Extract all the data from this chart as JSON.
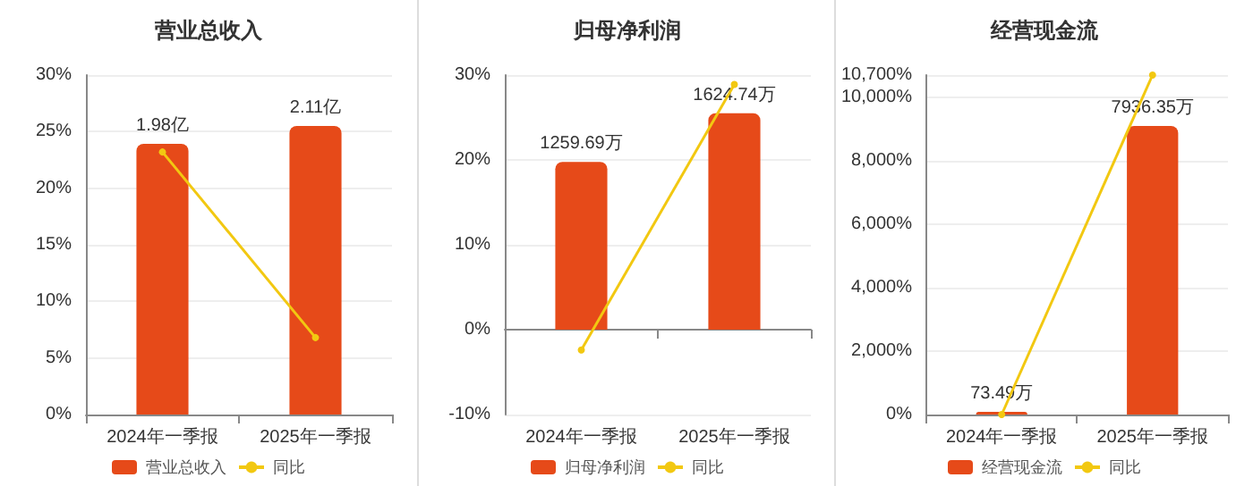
{
  "chart_data": [
    {
      "type": "bar",
      "title": "营业总收入",
      "categories": [
        "2024年一季报",
        "2025年一季报"
      ],
      "ylim": [
        0,
        30
      ],
      "yticks": [
        {
          "value": 0,
          "label": "0%"
        },
        {
          "value": 5,
          "label": "5%"
        },
        {
          "value": 10,
          "label": "10%"
        },
        {
          "value": 15,
          "label": "15%"
        },
        {
          "value": 20,
          "label": "20%"
        },
        {
          "value": 25,
          "label": "25%"
        },
        {
          "value": 30,
          "label": "30%"
        }
      ],
      "grid": "y",
      "legend": "bottom",
      "marker": "circle",
      "series": [
        {
          "name": "营业总收入",
          "axis": "y2",
          "color": "#e64a19",
          "values": [
            1.98,
            2.11
          ],
          "value_labels": [
            "1.98亿",
            "2.11亿"
          ]
        },
        {
          "name": "同比",
          "type": "line",
          "color": "#f2c811",
          "values": [
            23.2,
            6.8
          ]
        }
      ]
    },
    {
      "type": "bar",
      "title": "归母净利润",
      "categories": [
        "2024年一季报",
        "2025年一季报"
      ],
      "ylim": [
        -10,
        30
      ],
      "yticks": [
        {
          "value": -10,
          "label": "-10%"
        },
        {
          "value": 0,
          "label": "0%"
        },
        {
          "value": 10,
          "label": "10%"
        },
        {
          "value": 20,
          "label": "20%"
        },
        {
          "value": 30,
          "label": "30%"
        }
      ],
      "grid": "y",
      "legend": "bottom",
      "marker": "circle",
      "series": [
        {
          "name": "归母净利润",
          "axis": "y2",
          "color": "#e64a19",
          "values": [
            1259.69,
            1624.74
          ],
          "value_labels": [
            "1259.69万",
            "1624.74万"
          ]
        },
        {
          "name": "同比",
          "type": "line",
          "color": "#f2c811",
          "values": [
            -2.4,
            28.9
          ]
        }
      ]
    },
    {
      "type": "bar",
      "title": "经营现金流",
      "categories": [
        "2024年一季报",
        "2025年一季报"
      ],
      "ylim": [
        0,
        10700
      ],
      "yticks": [
        {
          "value": 0,
          "label": "0%"
        },
        {
          "value": 2000,
          "label": "2,000%"
        },
        {
          "value": 4000,
          "label": "4,000%"
        },
        {
          "value": 6000,
          "label": "6,000%"
        },
        {
          "value": 8000,
          "label": "8,000%"
        },
        {
          "value": 10000,
          "label": "10,000%"
        },
        {
          "value": 10700,
          "label": "10,700%"
        }
      ],
      "grid": "y",
      "legend": "bottom",
      "marker": "circle",
      "series": [
        {
          "name": "经营现金流",
          "axis": "y2",
          "color": "#e64a19",
          "values": [
            73.49,
            7936.35
          ],
          "value_labels": [
            "73.49万",
            "7936.35万"
          ]
        },
        {
          "name": "同比",
          "type": "line",
          "color": "#f2c811",
          "values": [
            0,
            10700
          ]
        }
      ]
    }
  ]
}
